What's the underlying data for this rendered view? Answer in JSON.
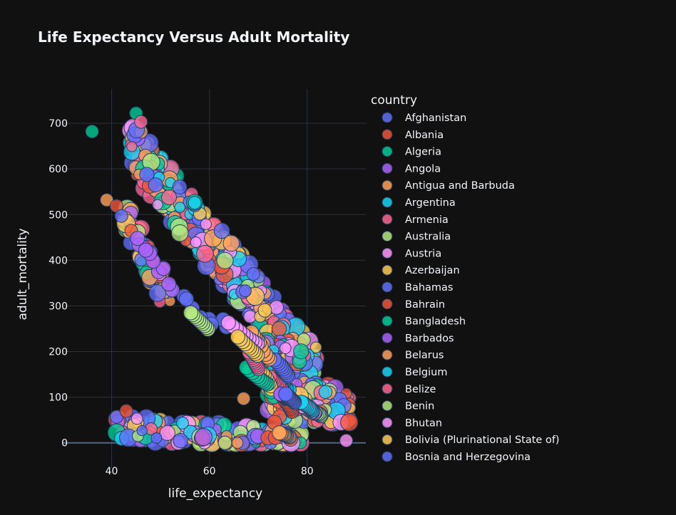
{
  "chart_data": {
    "type": "scatter",
    "title": "Life Expectancy Versus Adult Mortality",
    "xlabel": "life_expectancy",
    "ylabel": "adult_mortality",
    "xlim": [
      30,
      92
    ],
    "ylim": [
      -55,
      775
    ],
    "xticks": [
      40,
      60,
      80
    ],
    "yticks": [
      0,
      100,
      200,
      300,
      400,
      500,
      600,
      700
    ],
    "grid": true,
    "legend_title": "country",
    "legend_position": "right",
    "series": [
      {
        "name": "Afghanistan",
        "color": "#636efa",
        "points": [
          [
            54.8,
            321
          ],
          [
            59.9,
            271
          ],
          [
            47.2,
            588
          ],
          [
            56.5,
            295
          ],
          [
            63.5,
            254
          ],
          [
            62.8,
            270
          ],
          [
            58.1,
            275
          ],
          [
            55.3,
            315
          ],
          [
            49.0,
            565
          ],
          [
            60.4,
            260
          ]
        ]
      },
      {
        "name": "Albania",
        "color": "#EF553B",
        "points": [
          [
            77.8,
            74
          ],
          [
            76.6,
            8
          ],
          [
            73.3,
            45
          ],
          [
            72.8,
            99
          ],
          [
            76.1,
            86
          ],
          [
            75.9,
            94
          ],
          [
            72.0,
            11
          ],
          [
            73.5,
            12
          ],
          [
            76.0,
            88
          ],
          [
            74.2,
            91
          ]
        ]
      },
      {
        "name": "Algeria",
        "color": "#00cc96",
        "points": [
          [
            75.6,
            19
          ],
          [
            73.2,
            101
          ],
          [
            72.6,
            112
          ],
          [
            76.1,
            114
          ],
          [
            74.2,
            127
          ],
          [
            73.5,
            132
          ],
          [
            71.7,
            142
          ],
          [
            75.4,
            113
          ],
          [
            76.0,
            111
          ],
          [
            71.3,
            145
          ]
        ]
      },
      {
        "name": "Angola",
        "color": "#ab63fa",
        "points": [
          [
            52.4,
            335
          ],
          [
            51.7,
            348
          ],
          [
            49.6,
            375
          ],
          [
            50.6,
            382
          ],
          [
            48.5,
            398
          ],
          [
            47.8,
            415
          ],
          [
            46.4,
            429
          ],
          [
            45.6,
            434
          ],
          [
            47.0,
            422
          ],
          [
            45.3,
            448
          ]
        ]
      },
      {
        "name": "Antigua and Barbuda",
        "color": "#FFA15A",
        "points": [
          [
            76.4,
            13
          ],
          [
            76.2,
            14
          ],
          [
            75.9,
            15
          ],
          [
            75.7,
            16
          ],
          [
            75.5,
            17
          ],
          [
            75.3,
            18
          ],
          [
            75.1,
            19
          ],
          [
            74.8,
            20
          ],
          [
            74.6,
            21
          ],
          [
            74.3,
            22
          ]
        ]
      },
      {
        "name": "Argentina",
        "color": "#19d3f3",
        "points": [
          [
            76.3,
            116
          ],
          [
            75.8,
            118
          ],
          [
            75.5,
            121
          ],
          [
            75.2,
            124
          ],
          [
            75.0,
            128
          ],
          [
            74.8,
            125
          ],
          [
            74.6,
            128
          ],
          [
            74.3,
            128
          ],
          [
            74.4,
            131
          ],
          [
            74.1,
            135
          ]
        ]
      },
      {
        "name": "Armenia",
        "color": "#FF6692",
        "points": [
          [
            74.8,
            118
          ],
          [
            74.6,
            122
          ],
          [
            74.3,
            125
          ],
          [
            74.1,
            128
          ],
          [
            73.8,
            131
          ],
          [
            73.5,
            134
          ],
          [
            73.2,
            135
          ],
          [
            72.9,
            138
          ],
          [
            72.6,
            141
          ],
          [
            72.3,
            144
          ]
        ]
      },
      {
        "name": "Australia",
        "color": "#B6E880",
        "points": [
          [
            82.8,
            59
          ],
          [
            82.7,
            61
          ],
          [
            82.5,
            63
          ],
          [
            82.3,
            64
          ],
          [
            82.0,
            65
          ],
          [
            81.7,
            67
          ],
          [
            81.3,
            69
          ],
          [
            81.0,
            71
          ],
          [
            80.7,
            73
          ],
          [
            80.3,
            75
          ]
        ]
      },
      {
        "name": "Austria",
        "color": "#FF97FF",
        "points": [
          [
            81.5,
            65
          ],
          [
            81.4,
            66
          ],
          [
            81.1,
            67
          ],
          [
            81.0,
            68
          ],
          [
            80.7,
            70
          ],
          [
            80.4,
            72
          ],
          [
            80.1,
            74
          ],
          [
            79.8,
            76
          ],
          [
            79.4,
            78
          ],
          [
            79.1,
            80
          ]
        ]
      },
      {
        "name": "Azerbaijan",
        "color": "#FECB52",
        "points": [
          [
            72.7,
            118
          ],
          [
            72.5,
            125
          ],
          [
            72.2,
            131
          ],
          [
            71.9,
            137
          ],
          [
            71.6,
            143
          ],
          [
            71.2,
            148
          ],
          [
            70.8,
            153
          ],
          [
            70.3,
            158
          ],
          [
            69.8,
            163
          ],
          [
            69.2,
            169
          ]
        ]
      },
      {
        "name": "Bahamas",
        "color": "#636efa",
        "points": [
          [
            76.1,
            147
          ],
          [
            75.9,
            150
          ],
          [
            75.6,
            154
          ],
          [
            75.4,
            158
          ],
          [
            75.1,
            162
          ],
          [
            74.8,
            166
          ],
          [
            74.5,
            170
          ],
          [
            74.1,
            174
          ],
          [
            73.7,
            178
          ],
          [
            73.3,
            182
          ]
        ]
      },
      {
        "name": "Bahrain",
        "color": "#EF553B",
        "points": [
          [
            76.9,
            69
          ],
          [
            76.8,
            72
          ],
          [
            76.6,
            75
          ],
          [
            76.5,
            78
          ],
          [
            76.3,
            81
          ],
          [
            76.1,
            84
          ],
          [
            75.9,
            87
          ],
          [
            75.7,
            90
          ],
          [
            75.5,
            93
          ],
          [
            75.3,
            96
          ]
        ]
      },
      {
        "name": "Bangladesh",
        "color": "#00cc96",
        "points": [
          [
            71.8,
            129
          ],
          [
            71.4,
            132
          ],
          [
            71.0,
            135
          ],
          [
            70.6,
            138
          ],
          [
            70.2,
            141
          ],
          [
            69.8,
            145
          ],
          [
            69.3,
            149
          ],
          [
            68.8,
            154
          ],
          [
            68.2,
            159
          ],
          [
            67.6,
            165
          ]
        ]
      },
      {
        "name": "Barbados",
        "color": "#ab63fa",
        "points": [
          [
            75.5,
            98
          ],
          [
            75.4,
            99
          ],
          [
            75.3,
            100
          ],
          [
            75.2,
            101
          ],
          [
            75.1,
            102
          ],
          [
            75.0,
            103
          ],
          [
            74.9,
            104
          ],
          [
            74.8,
            105
          ],
          [
            74.7,
            106
          ],
          [
            74.6,
            107
          ]
        ]
      },
      {
        "name": "Belarus",
        "color": "#FFA15A",
        "points": [
          [
            72.3,
            184
          ],
          [
            71.9,
            188
          ],
          [
            71.5,
            194
          ],
          [
            71.0,
            201
          ],
          [
            70.6,
            212
          ],
          [
            70.2,
            220
          ],
          [
            69.8,
            225
          ],
          [
            69.4,
            230
          ],
          [
            69.0,
            236
          ],
          [
            68.6,
            242
          ]
        ]
      },
      {
        "name": "Belgium",
        "color": "#19d3f3",
        "points": [
          [
            81.1,
            71
          ],
          [
            80.9,
            73
          ],
          [
            80.7,
            75
          ],
          [
            80.5,
            77
          ],
          [
            80.3,
            79
          ],
          [
            80.0,
            81
          ],
          [
            79.7,
            83
          ],
          [
            79.4,
            85
          ],
          [
            79.1,
            87
          ],
          [
            78.8,
            89
          ]
        ]
      },
      {
        "name": "Belize",
        "color": "#FF6692",
        "points": [
          [
            70.0,
            163
          ],
          [
            69.8,
            167
          ],
          [
            69.6,
            171
          ],
          [
            69.4,
            175
          ],
          [
            69.2,
            179
          ],
          [
            69.0,
            183
          ],
          [
            68.8,
            187
          ],
          [
            68.6,
            191
          ],
          [
            68.4,
            195
          ],
          [
            68.2,
            199
          ]
        ]
      },
      {
        "name": "Benin",
        "color": "#B6E880",
        "points": [
          [
            59.7,
            249
          ],
          [
            59.4,
            253
          ],
          [
            59.0,
            257
          ],
          [
            58.6,
            261
          ],
          [
            58.2,
            265
          ],
          [
            57.8,
            269
          ],
          [
            57.4,
            273
          ],
          [
            57.0,
            277
          ],
          [
            56.6,
            281
          ],
          [
            56.2,
            285
          ]
        ]
      },
      {
        "name": "Bhutan",
        "color": "#FF97FF",
        "points": [
          [
            69.8,
            217
          ],
          [
            69.3,
            220
          ],
          [
            68.7,
            224
          ],
          [
            68.1,
            228
          ],
          [
            67.5,
            233
          ],
          [
            66.9,
            238
          ],
          [
            66.2,
            244
          ],
          [
            65.5,
            250
          ],
          [
            64.7,
            256
          ],
          [
            63.9,
            263
          ]
        ]
      },
      {
        "name": "Bolivia (Plurinational State of)",
        "color": "#FECB52",
        "points": [
          [
            69.8,
            192
          ],
          [
            69.4,
            196
          ],
          [
            69.0,
            200
          ],
          [
            68.6,
            204
          ],
          [
            68.2,
            208
          ],
          [
            67.8,
            212
          ],
          [
            67.3,
            217
          ],
          [
            66.8,
            222
          ],
          [
            66.3,
            227
          ],
          [
            65.8,
            232
          ]
        ]
      },
      {
        "name": "Bosnia and Herzegovina",
        "color": "#636efa",
        "points": [
          [
            77.4,
            89
          ],
          [
            77.2,
            91
          ],
          [
            77.0,
            93
          ],
          [
            76.8,
            95
          ],
          [
            76.6,
            97
          ],
          [
            76.4,
            99
          ],
          [
            76.2,
            101
          ],
          [
            76.0,
            103
          ],
          [
            75.8,
            105
          ],
          [
            75.6,
            107
          ]
        ]
      }
    ]
  }
}
